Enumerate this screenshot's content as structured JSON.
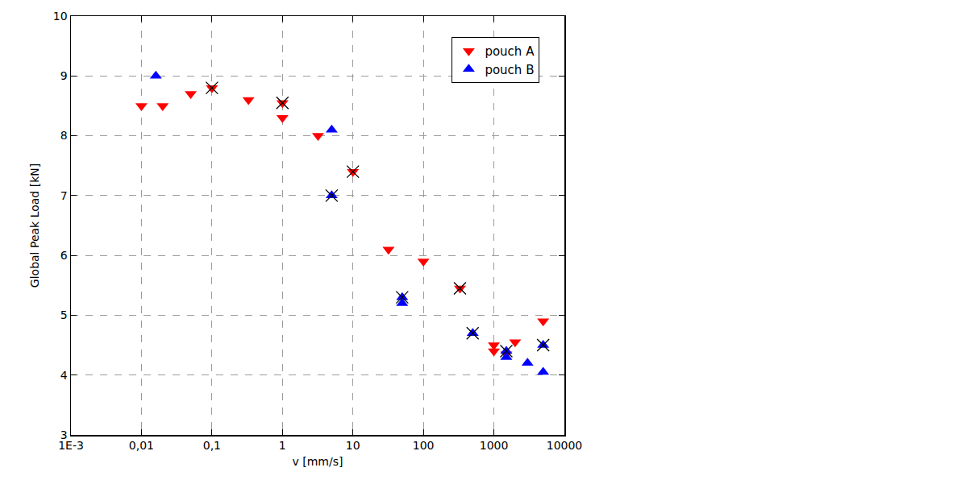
{
  "chart_data": {
    "type": "scatter",
    "x_label": "v [mm/s]",
    "y_label": "Global Peak Load [kN]",
    "log": "x",
    "grid": true,
    "legend": "upper right",
    "xlim": [
      0.001,
      10000
    ],
    "xticks": [
      {
        "value": 0.001,
        "label": "1E-3"
      },
      {
        "value": 0.01,
        "label": "0,01"
      },
      {
        "value": 0.1,
        "label": "0,1"
      },
      1,
      10,
      100,
      1000,
      10000
    ],
    "ylim": [
      3,
      10
    ],
    "yticks": [
      3,
      4,
      5,
      6,
      7,
      8,
      9,
      10
    ],
    "series": [
      {
        "name": "pouch A",
        "color": "#ff0000",
        "marker": "triangle-down",
        "x": [
          0.01,
          0.02,
          0.05,
          0.1,
          0.33,
          1,
          1,
          3.2,
          10,
          32,
          100,
          330,
          1000,
          1000,
          1500,
          2000,
          5000
        ],
        "values": [
          8.5,
          8.5,
          8.7,
          8.8,
          8.6,
          8.55,
          8.3,
          8.0,
          7.4,
          6.1,
          5.9,
          5.45,
          4.4,
          4.5,
          4.35,
          4.55,
          4.9
        ]
      },
      {
        "name": "pouch B",
        "color": "#0000ff",
        "marker": "triangle-up",
        "x": [
          0.016,
          5,
          5,
          50,
          50,
          500,
          1500,
          1500,
          3000,
          5000,
          5000
        ],
        "values": [
          9.0,
          8.1,
          7.0,
          5.3,
          5.2,
          4.7,
          4.4,
          4.3,
          4.2,
          4.5,
          4.05
        ]
      },
      {
        "color": "#000000",
        "marker": "x",
        "x": [
          0.1,
          1,
          5,
          10,
          50,
          330,
          500,
          1500,
          5000
        ],
        "values": [
          8.8,
          8.55,
          7.0,
          7.4,
          5.3,
          5.45,
          4.7,
          4.4,
          4.5
        ]
      }
    ]
  }
}
